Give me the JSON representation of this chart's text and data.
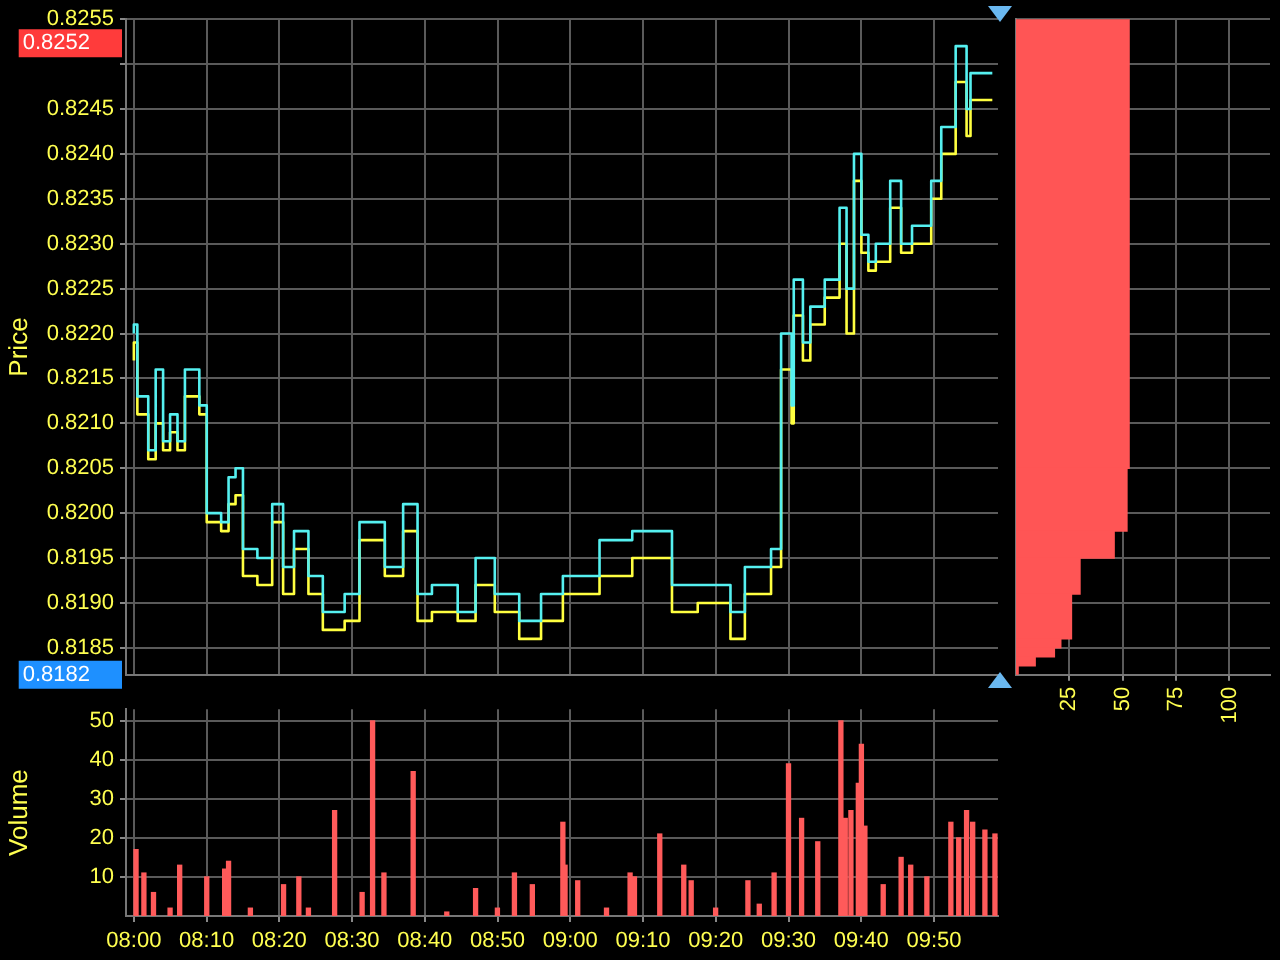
{
  "chart_data": [
    {
      "type": "step",
      "ylabel": "Price",
      "xlim": [
        7.982,
        9.98
      ],
      "ylim": [
        0.8182,
        0.8255
      ],
      "xticks": [
        {
          "value": 8,
          "label": null
        },
        {
          "value": 8.1667,
          "label": null
        },
        {
          "value": 8.3333,
          "label": null
        },
        {
          "value": 8.5,
          "label": null
        },
        {
          "value": 8.6667,
          "label": null
        },
        {
          "value": 8.8333,
          "label": null
        },
        {
          "value": 9,
          "label": null
        },
        {
          "value": 9.1667,
          "label": null
        },
        {
          "value": 9.3333,
          "label": null
        },
        {
          "value": 9.5,
          "label": null
        },
        {
          "value": 9.6667,
          "label": null
        },
        {
          "value": 9.8333,
          "label": null
        }
      ],
      "yticks": [
        0.8185,
        {
          "value": 0.819,
          "label": "0.8190"
        },
        0.8195,
        {
          "value": 0.82,
          "label": "0.8200"
        },
        0.8205,
        {
          "value": 0.821,
          "label": "0.8210"
        },
        0.8215,
        {
          "value": 0.822,
          "label": "0.8220"
        },
        0.8225,
        {
          "value": 0.823,
          "label": "0.8230"
        },
        0.8235,
        {
          "value": 0.824,
          "label": "0.8240"
        },
        0.8245,
        {
          "value": 0.825,
          "label": null
        },
        0.8255
      ],
      "tick_labels": "y",
      "grid": true,
      "legend": false,
      "x": [
        8,
        8.008,
        8.033,
        8.05,
        8.067,
        8.083,
        8.1,
        8.117,
        8.15,
        8.167,
        8.2,
        8.217,
        8.233,
        8.25,
        8.283,
        8.317,
        8.342,
        8.367,
        8.4,
        8.433,
        8.483,
        8.517,
        8.575,
        8.617,
        8.65,
        8.683,
        8.742,
        8.783,
        8.827,
        8.883,
        8.933,
        8.983,
        9.067,
        9.142,
        9.233,
        9.292,
        9.367,
        9.4,
        9.46,
        9.483,
        9.507,
        9.512,
        9.533,
        9.55,
        9.583,
        9.617,
        9.633,
        9.65,
        9.667,
        9.683,
        9.7,
        9.733,
        9.758,
        9.783,
        9.827,
        9.85,
        9.883,
        9.908,
        9.917,
        9.967
      ],
      "series": [
        {
          "color": "#55f0f0",
          "values": [
            0.822,
            0.8221,
            0.8213,
            0.8207,
            0.8216,
            0.8208,
            0.8211,
            0.8208,
            0.8216,
            0.8212,
            0.82,
            0.8199,
            0.8204,
            0.8205,
            0.8196,
            0.8195,
            0.8201,
            0.8194,
            0.8198,
            0.8193,
            0.8189,
            0.8191,
            0.8199,
            0.8194,
            0.8201,
            0.8191,
            0.8192,
            0.8189,
            0.8195,
            0.8191,
            0.8188,
            0.8191,
            0.8193,
            0.8197,
            0.8198,
            0.8192,
            0.8192,
            0.8189,
            0.8194,
            0.8196,
            0.822,
            0.8212,
            0.8226,
            0.8219,
            0.8223,
            0.8226,
            0.8234,
            0.8225,
            0.824,
            0.8231,
            0.8228,
            0.823,
            0.8237,
            0.823,
            0.8232,
            0.8237,
            0.8243,
            0.8252,
            0.8245,
            0.8249
          ]
        },
        {
          "color": "#ffff40",
          "values": [
            0.8217,
            0.8219,
            0.8211,
            0.8206,
            0.821,
            0.8207,
            0.8209,
            0.8207,
            0.8213,
            0.8211,
            0.8199,
            0.8198,
            0.8201,
            0.8202,
            0.8193,
            0.8192,
            0.8199,
            0.8191,
            0.8196,
            0.8191,
            0.8187,
            0.8188,
            0.8197,
            0.8193,
            0.8198,
            0.8188,
            0.8189,
            0.8188,
            0.8192,
            0.8189,
            0.8186,
            0.8188,
            0.8191,
            0.8193,
            0.8195,
            0.8189,
            0.819,
            0.8186,
            0.8191,
            0.8194,
            0.8216,
            0.821,
            0.8222,
            0.8217,
            0.8221,
            0.8224,
            0.823,
            0.822,
            0.8237,
            0.8229,
            0.8227,
            0.8228,
            0.8234,
            0.8229,
            0.823,
            0.8235,
            0.824,
            0.8248,
            0.8242,
            0.8246
          ]
        }
      ],
      "annotations": [
        "0.8252",
        "0.8182"
      ]
    },
    {
      "type": "bar",
      "ylabel": "Volume",
      "xlim": [
        7.982,
        9.98
      ],
      "ylim": [
        0,
        53
      ],
      "xticks": [
        {
          "value": 8,
          "label": "08:00"
        },
        {
          "value": 8.1667,
          "label": "08:10"
        },
        {
          "value": 8.3333,
          "label": "08:20"
        },
        {
          "value": 8.5,
          "label": "08:30"
        },
        {
          "value": 8.6667,
          "label": "08:40"
        },
        {
          "value": 8.8333,
          "label": "08:50"
        },
        {
          "value": 9,
          "label": "09:00"
        },
        {
          "value": 9.1667,
          "label": "09:10"
        },
        {
          "value": 9.3333,
          "label": "09:20"
        },
        {
          "value": 9.5,
          "label": "09:30"
        },
        {
          "value": 9.6667,
          "label": "09:40"
        },
        {
          "value": 9.8333,
          "label": "09:50"
        }
      ],
      "yticks": [
        10,
        20,
        30,
        40,
        50
      ],
      "grid": true,
      "legend": false,
      "color": "#ff5a5a",
      "x": [
        8.005,
        8.023,
        8.045,
        8.083,
        8.105,
        8.167,
        8.208,
        8.217,
        8.267,
        8.343,
        8.378,
        8.4,
        8.46,
        8.523,
        8.547,
        8.573,
        8.64,
        8.717,
        8.783,
        8.833,
        8.872,
        8.913,
        8.983,
        8.988,
        9.017,
        9.083,
        9.137,
        9.147,
        9.205,
        9.26,
        9.277,
        9.333,
        9.407,
        9.433,
        9.467,
        9.5,
        9.53,
        9.567,
        9.62,
        9.63,
        9.643,
        9.66,
        9.667,
        9.675,
        9.717,
        9.758,
        9.78,
        9.817,
        9.872,
        9.89,
        9.908,
        9.922,
        9.95,
        9.973
      ],
      "values": [
        17,
        11,
        6,
        2,
        13,
        10,
        12,
        14,
        2,
        8,
        10,
        2,
        27,
        6,
        50,
        11,
        37,
        1,
        7,
        2,
        11,
        8,
        24,
        13,
        9,
        2,
        11,
        10,
        21,
        13,
        9,
        2,
        9,
        3,
        11,
        39,
        25,
        19,
        50,
        25,
        27,
        34,
        44,
        23,
        8,
        15,
        13,
        10,
        24,
        20,
        27,
        24,
        22,
        21
      ]
    },
    {
      "type": "histogram",
      "orientation": "horizontal",
      "xlim": [
        0,
        119
      ],
      "ylim": [
        0.8182,
        0.8255
      ],
      "xticks": [
        25,
        50,
        75,
        100
      ],
      "yticks": [
        0.8185,
        0.819,
        0.8195,
        0.82,
        0.8205,
        0.821,
        0.8215,
        0.822,
        0.8225,
        0.823,
        0.8235,
        0.824,
        0.8245,
        0.825,
        0.8255
      ],
      "tick_labels": "x",
      "grid": true,
      "legend": false,
      "color": "#ff5555",
      "bins": [
        0.8182,
        0.8183,
        0.8184,
        0.8185,
        0.8186,
        0.8191,
        0.8195,
        0.8198,
        0.8205,
        0.8255
      ],
      "values": [
        1,
        9,
        18,
        21,
        26,
        30,
        46,
        52,
        53
      ]
    }
  ]
}
